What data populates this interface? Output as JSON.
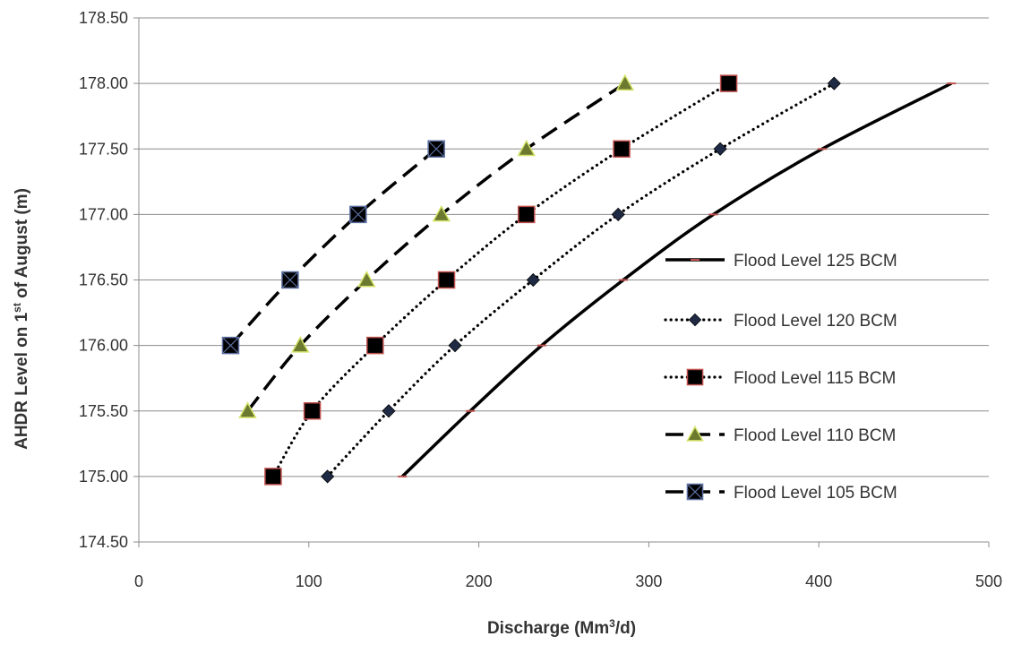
{
  "chart_data": {
    "type": "line",
    "xlabel": {
      "pre": "Discharge (Mm",
      "sup": "3",
      "post": "/d)"
    },
    "ylabel": {
      "pre": "AHDR Level on 1",
      "sup": "st",
      "post": " of August (m)"
    },
    "xlim": [
      0,
      500
    ],
    "ylim": [
      174.5,
      178.5
    ],
    "x_ticks": [
      "0",
      "100",
      "200",
      "300",
      "400",
      "500"
    ],
    "y_ticks": [
      "174.50",
      "175.00",
      "175.50",
      "176.00",
      "176.50",
      "177.00",
      "177.50",
      "178.00",
      "178.50"
    ],
    "grid": "horizontal",
    "legend_position": "right",
    "series": [
      {
        "name": "Flood Level 125 BCM",
        "line": "solid",
        "marker": "dash",
        "color": "#000000",
        "marker_color": "#c0504d",
        "points": [
          [
            155,
            175.0
          ],
          [
            195,
            175.5
          ],
          [
            237,
            176.0
          ],
          [
            285,
            176.5
          ],
          [
            338,
            177.0
          ],
          [
            402,
            177.5
          ],
          [
            478,
            178.0
          ]
        ]
      },
      {
        "name": "Flood Level 120 BCM",
        "line": "dotted",
        "marker": "diamond",
        "color": "#000000",
        "marker_color": "#1f2a44",
        "points": [
          [
            111,
            175.0
          ],
          [
            147,
            175.5
          ],
          [
            186,
            176.0
          ],
          [
            232,
            176.5
          ],
          [
            282,
            177.0
          ],
          [
            342,
            177.5
          ],
          [
            409,
            178.0
          ]
        ]
      },
      {
        "name": "Flood Level 115 BCM",
        "line": "dotted",
        "marker": "square",
        "color": "#000000",
        "marker_color": "#000000",
        "marker_stroke": "#c0504d",
        "points": [
          [
            79,
            175.0
          ],
          [
            102,
            175.5
          ],
          [
            139,
            176.0
          ],
          [
            181,
            176.5
          ],
          [
            228,
            177.0
          ],
          [
            284,
            177.5
          ],
          [
            347,
            178.0
          ]
        ]
      },
      {
        "name": "Flood Level 110 BCM",
        "line": "dashed",
        "marker": "triangle",
        "color": "#000000",
        "marker_color": "#6b7a2f",
        "marker_stroke": "#d6e36a",
        "points": [
          [
            64,
            175.5
          ],
          [
            95,
            176.0
          ],
          [
            134,
            176.5
          ],
          [
            178,
            177.0
          ],
          [
            228,
            177.5
          ],
          [
            286,
            178.0
          ]
        ]
      },
      {
        "name": "Flood Level 105 BCM",
        "line": "dashed",
        "marker": "square-x",
        "color": "#000000",
        "marker_color": "#000000",
        "marker_stroke": "#5b6fa0",
        "points": [
          [
            54,
            176.0
          ],
          [
            89,
            176.5
          ],
          [
            129,
            177.0
          ],
          [
            175,
            177.5
          ]
        ]
      }
    ]
  }
}
